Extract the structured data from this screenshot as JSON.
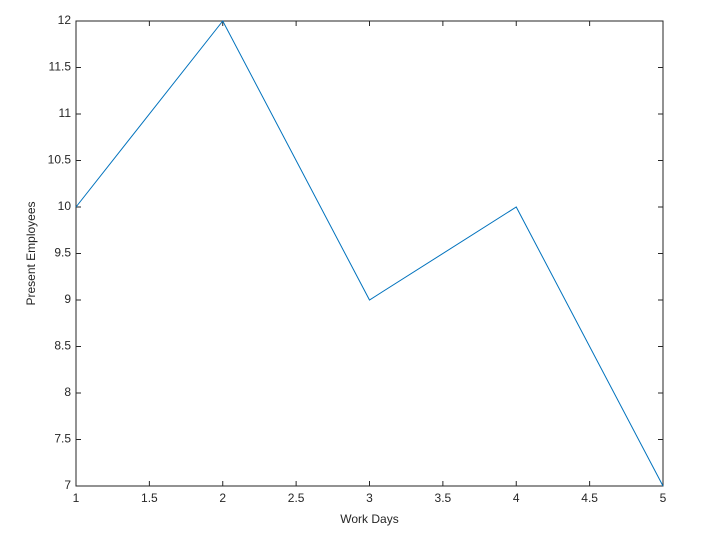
{
  "chart_data": {
    "type": "line",
    "x_label": "Work Days",
    "y_label": "Present Employees",
    "x": [
      1,
      2,
      3,
      4,
      5
    ],
    "series": [
      {
        "name": "Present Employees",
        "color": "#0072bd",
        "values": [
          10,
          12,
          9,
          10,
          7
        ]
      }
    ],
    "xlim": [
      1,
      5
    ],
    "xticks": [
      1,
      1.5,
      2,
      2.5,
      3,
      3.5,
      4,
      4.5,
      5
    ],
    "ylim": [
      7,
      12
    ],
    "yticks": [
      7,
      7.5,
      8,
      8.5,
      9,
      9.5,
      10,
      10.5,
      11,
      11.5,
      12
    ],
    "grid": false
  }
}
